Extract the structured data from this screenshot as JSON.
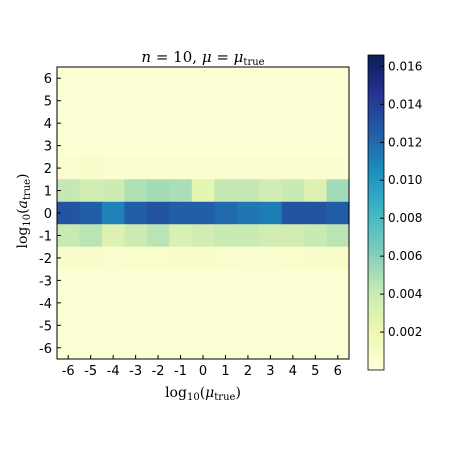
{
  "chart_data": {
    "type": "heatmap",
    "title": "n = 10,  μ = μ_true",
    "title_parts": {
      "n": "n",
      "eq1": " = 10,  ",
      "mu": "μ",
      "eq2": " = ",
      "mu2": "μ",
      "sub": "true"
    },
    "xlabel_parts": {
      "pre": "log",
      "sub1": "10",
      "open": "(",
      "var": "μ",
      "sub2": "true",
      "close": ")"
    },
    "ylabel_parts": {
      "pre": "log",
      "sub1": "10",
      "open": "(",
      "var": "a",
      "sub2": "true",
      "close": ")"
    },
    "x": [
      -6,
      -5,
      -4,
      -3,
      -2,
      -1,
      0,
      1,
      2,
      3,
      4,
      5,
      6
    ],
    "y": [
      -6,
      -5,
      -4,
      -3,
      -2,
      -1,
      0,
      1,
      2,
      3,
      4,
      5,
      6
    ],
    "x_tick_labels": [
      "-6",
      "-5",
      "-4",
      "-3",
      "-2",
      "-1",
      "0",
      "1",
      "2",
      "3",
      "4",
      "5",
      "6"
    ],
    "y_tick_labels": [
      "-6",
      "-5",
      "-4",
      "-3",
      "-2",
      "-1",
      "0",
      "1",
      "2",
      "3",
      "4",
      "5",
      "6"
    ],
    "z": [
      [
        0.0003,
        0.0003,
        0.0003,
        0.0003,
        0.0003,
        0.0003,
        0.0003,
        0.0003,
        0.0003,
        0.0003,
        0.0003,
        0.0003,
        0.0003
      ],
      [
        0.0003,
        0.0003,
        0.0003,
        0.0003,
        0.0003,
        0.0003,
        0.0003,
        0.0003,
        0.0003,
        0.0003,
        0.0003,
        0.0003,
        0.0003
      ],
      [
        0.0003,
        0.0003,
        0.0003,
        0.0003,
        0.0003,
        0.0003,
        0.0003,
        0.0003,
        0.0003,
        0.0003,
        0.0003,
        0.0003,
        0.0003
      ],
      [
        0.0003,
        0.0003,
        0.0003,
        0.0003,
        0.0003,
        0.0003,
        0.0003,
        0.0003,
        0.0003,
        0.0003,
        0.0003,
        0.0003,
        0.0003
      ],
      [
        0.0005,
        0.0008,
        0.0006,
        0.0006,
        0.0005,
        0.0006,
        0.0005,
        0.0005,
        0.0005,
        0.0005,
        0.0005,
        0.0005,
        0.0005
      ],
      [
        0.0042,
        0.0036,
        0.0038,
        0.0048,
        0.0052,
        0.005,
        0.0025,
        0.0042,
        0.0042,
        0.0036,
        0.004,
        0.003,
        0.0052
      ],
      [
        0.013,
        0.0125,
        0.011,
        0.0125,
        0.013,
        0.0125,
        0.0125,
        0.012,
        0.0115,
        0.0112,
        0.013,
        0.013,
        0.0125
      ],
      [
        0.004,
        0.0045,
        0.003,
        0.0038,
        0.0045,
        0.0032,
        0.0036,
        0.004,
        0.004,
        0.0036,
        0.0036,
        0.004,
        0.0045
      ],
      [
        0.0008,
        0.0008,
        0.0006,
        0.0007,
        0.0007,
        0.0008,
        0.0009,
        0.0007,
        0.0006,
        0.0006,
        0.0007,
        0.0008,
        0.0009
      ],
      [
        0.0003,
        0.0003,
        0.0003,
        0.0003,
        0.0003,
        0.0003,
        0.0003,
        0.0003,
        0.0003,
        0.0003,
        0.0003,
        0.0003,
        0.0003
      ],
      [
        0.0003,
        0.0003,
        0.0003,
        0.0003,
        0.0003,
        0.0003,
        0.0003,
        0.0003,
        0.0003,
        0.0003,
        0.0003,
        0.0003,
        0.0003
      ],
      [
        0.0003,
        0.0003,
        0.0003,
        0.0003,
        0.0003,
        0.0003,
        0.0003,
        0.0003,
        0.0003,
        0.0003,
        0.0003,
        0.0003,
        0.0003
      ],
      [
        0.0003,
        0.0003,
        0.0003,
        0.0003,
        0.0003,
        0.0003,
        0.0003,
        0.0003,
        0.0003,
        0.0003,
        0.0003,
        0.0003,
        0.0003
      ]
    ],
    "xlim": [
      -6.5,
      6.5
    ],
    "ylim": [
      -6.5,
      6.5
    ],
    "colorbar": {
      "colormap": "YlGnBu",
      "range": [
        0.0,
        0.0166
      ],
      "ticks": [
        0.002,
        0.004,
        0.006,
        0.008,
        0.01,
        0.012,
        0.014,
        0.016
      ],
      "tick_labels": [
        "0.002",
        "0.004",
        "0.006",
        "0.008",
        "0.010",
        "0.012",
        "0.014",
        "0.016"
      ],
      "placement": "right"
    },
    "grid": false
  }
}
